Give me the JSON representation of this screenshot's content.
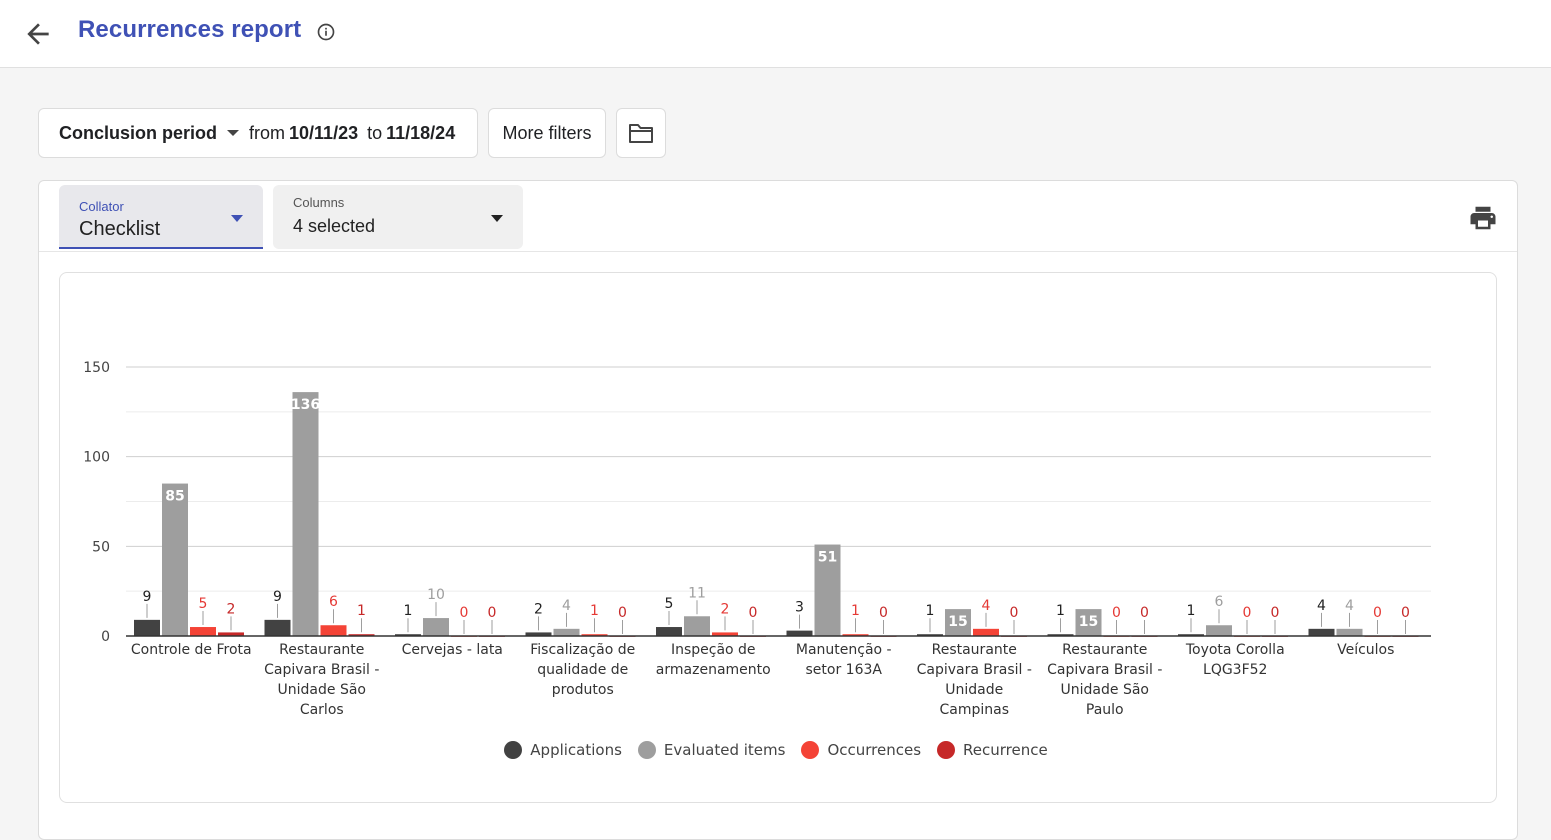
{
  "header": {
    "title": "Recurrences report"
  },
  "filters": {
    "period_label": "Conclusion period",
    "from_word": "from",
    "from_date": "10/11/23",
    "to_word": "to",
    "to_date": "11/18/24",
    "more_filters": "More filters"
  },
  "controls": {
    "collator": {
      "label": "Collator",
      "value": "Checklist"
    },
    "columns": {
      "label": "Columns",
      "value": "4 selected"
    }
  },
  "colors": {
    "applications": "#424242",
    "evaluated": "#9e9e9e",
    "occurrences": "#f44336",
    "recurrence": "#c62828",
    "accent": "#3f51b5"
  },
  "chart_data": {
    "type": "bar",
    "ylim": [
      0,
      150
    ],
    "yticks": [
      0,
      50,
      100,
      150
    ],
    "grid": true,
    "legend_position": "bottom",
    "categories": [
      [
        "Controle de Frota"
      ],
      [
        "Restaurante",
        "Capivara Brasil -",
        "Unidade São",
        "Carlos"
      ],
      [
        "Cervejas - lata"
      ],
      [
        "Fiscalização de",
        "qualidade de",
        "produtos"
      ],
      [
        "Inspeção de",
        "armazenamento"
      ],
      [
        "Manutenção -",
        "setor 163A"
      ],
      [
        "Restaurante",
        "Capivara Brasil -",
        "Unidade",
        "Campinas"
      ],
      [
        "Restaurante",
        "Capivara Brasil -",
        "Unidade São",
        "Paulo"
      ],
      [
        "Toyota Corolla",
        "LQG3F52"
      ],
      [
        "Veículos"
      ]
    ],
    "series": [
      {
        "name": "Applications",
        "values": [
          9,
          9,
          1,
          2,
          5,
          3,
          1,
          1,
          1,
          4
        ]
      },
      {
        "name": "Evaluated items",
        "values": [
          85,
          136,
          10,
          4,
          11,
          51,
          15,
          15,
          6,
          4
        ]
      },
      {
        "name": "Occurrences",
        "values": [
          5,
          6,
          0,
          1,
          2,
          1,
          4,
          0,
          0,
          0
        ]
      },
      {
        "name": "Recurrence",
        "values": [
          2,
          1,
          0,
          0,
          0,
          0,
          0,
          0,
          0,
          0
        ]
      }
    ]
  }
}
